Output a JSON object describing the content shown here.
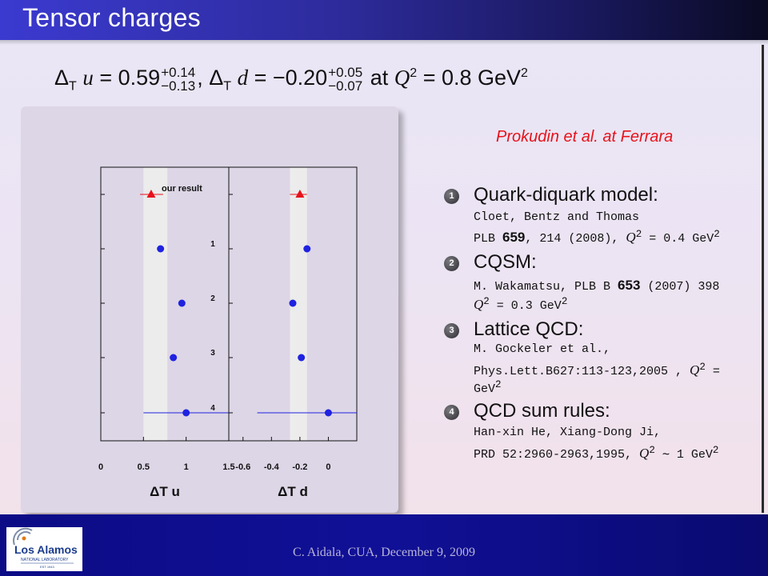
{
  "slide": {
    "title": "Tensor charges",
    "formula": {
      "du_label": "Δ",
      "du_sub": "T",
      "du_var": "u",
      "du_value": "= 0.59",
      "du_plus": "+0.14",
      "du_minus": "−0.13",
      "sep": ",",
      "dd_label": "Δ",
      "dd_sub": "T",
      "dd_var": "d",
      "dd_value": "= −0.20",
      "dd_plus": "+0.05",
      "dd_minus": "−0.07",
      "at": "at",
      "q": "Q",
      "q_exp": "2",
      "q_value": "= 0.8 GeV",
      "gev_exp": "2"
    },
    "attribution": "Prokudin et al. at Ferrara",
    "references": [
      {
        "num": "1",
        "heading": "Quark-diquark model:",
        "line1": "Cloet, Bentz and Thomas",
        "line2_pre": "PLB ",
        "line2_bold": "659",
        "line2_mid": ", 214 (2008), ",
        "line2_math": "Q",
        "line2_exp": "2",
        "line2_post": " = 0.4 GeV",
        "line2_exp2": "2"
      },
      {
        "num": "2",
        "heading": "CQSM:",
        "line1_pre": "M. Wakamatsu, PLB B ",
        "line1_bold": "653",
        "line1_post": " (2007) 398",
        "line2_math": "Q",
        "line2_exp": "2",
        "line2_post": " = 0.3 GeV",
        "line2_exp2": "2"
      },
      {
        "num": "3",
        "heading": "Lattice QCD:",
        "line1": "M. Gockeler et al.,",
        "line2_pre": "Phys.Lett.B627:113-123,2005 , ",
        "line2_math": "Q",
        "line2_exp": "2",
        "line2_post": " =",
        "line3": "GeV",
        "line3_exp": "2"
      },
      {
        "num": "4",
        "heading": "QCD sum rules:",
        "line1": "Han-xin He, Xiang-Dong Ji,",
        "line2_pre": "PRD 52:2960-2963,1995, ",
        "line2_math": "Q",
        "line2_exp": "2",
        "line2_post": " ∼ 1 GeV",
        "line2_exp2": "2"
      }
    ],
    "footer": "C. Aidala, CUA, December 9, 2009",
    "logo": {
      "text": "Los Alamos",
      "sub": "NATIONAL LABORATORY",
      "est": "EST 1943"
    }
  },
  "chart_data": [
    {
      "type": "scatter",
      "xlabel": "ΔT u",
      "xlim": [
        0,
        1.5
      ],
      "xticks": [
        "0",
        "0.5",
        "1",
        "1.5"
      ],
      "band": [
        0.5,
        0.78
      ],
      "point_labels": [
        "our result",
        "1",
        "2",
        "3",
        "4"
      ],
      "points": [
        {
          "label": "our result",
          "x": 0.59,
          "err": [
            0.13,
            0.14
          ],
          "marker": "triangle",
          "color": "#e8121a"
        },
        {
          "label": "1",
          "x": 0.7,
          "marker": "circle",
          "color": "#1f22e0"
        },
        {
          "label": "2",
          "x": 0.95,
          "marker": "circle",
          "color": "#1f22e0"
        },
        {
          "label": "3",
          "x": 0.85,
          "marker": "circle",
          "color": "#1f22e0"
        },
        {
          "label": "4",
          "x": 1.0,
          "err": [
            0.5,
            0.6
          ],
          "marker": "circle",
          "color": "#1f22e0"
        }
      ]
    },
    {
      "type": "scatter",
      "xlabel": "ΔT d",
      "xlim": [
        -0.7,
        0.2
      ],
      "xticks": [
        "-0.6",
        "-0.4",
        "-0.2",
        "0"
      ],
      "band": [
        -0.27,
        -0.15
      ],
      "points": [
        {
          "label": "our result",
          "x": -0.2,
          "err": [
            0.07,
            0.05
          ],
          "marker": "triangle",
          "color": "#e8121a"
        },
        {
          "label": "1",
          "x": -0.15,
          "marker": "circle",
          "color": "#1f22e0"
        },
        {
          "label": "2",
          "x": -0.25,
          "marker": "circle",
          "color": "#1f22e0"
        },
        {
          "label": "3",
          "x": -0.19,
          "err": [
            0.02,
            0.02
          ],
          "marker": "circle",
          "color": "#1f22e0"
        },
        {
          "label": "4",
          "x": 0.0,
          "err": [
            0.5,
            0.2
          ],
          "marker": "circle",
          "color": "#1f22e0"
        }
      ]
    }
  ]
}
